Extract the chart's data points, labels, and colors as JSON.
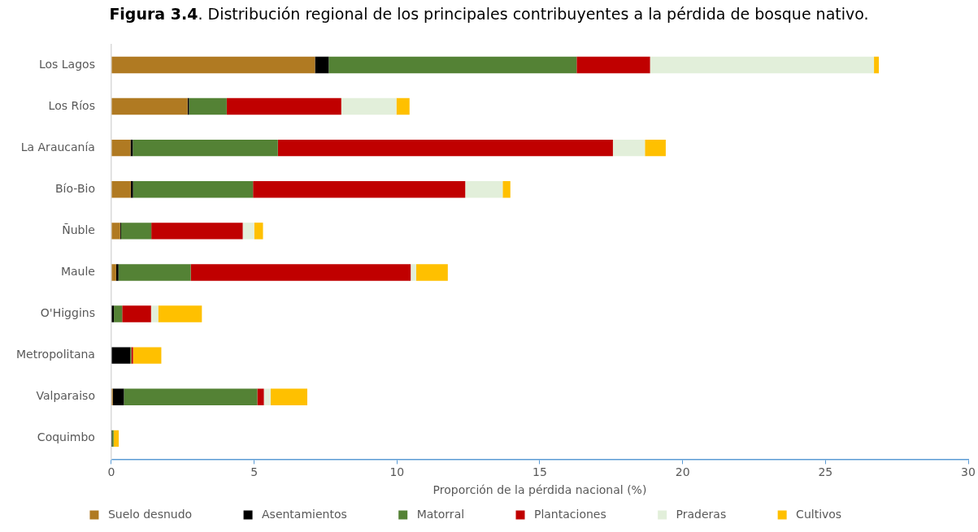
{
  "chart_data": {
    "type": "bar",
    "orientation": "horizontal",
    "stacked": true,
    "title": "Figura 3.4. Distribución regional de los principales contribuyentes a la pérdida de bosque nativo.",
    "xlabel": "Proporción de la pérdida nacional (%)",
    "categories": [
      "Los Lagos",
      "Los Ríos",
      "La Araucanía",
      "Bío-Bio",
      "Ñuble",
      "Maule",
      "O'Higgins",
      "Metropolitana",
      "Valparaiso",
      "Coquimbo"
    ],
    "series": [
      {
        "name": "Suelo desnudo",
        "color": "#b07a22",
        "values": [
          7.13,
          2.67,
          0.67,
          0.68,
          0.31,
          0.17,
          0,
          0,
          0.05,
          0
        ]
      },
      {
        "name": "Asentamientos",
        "color": "#000000",
        "values": [
          0.48,
          0.05,
          0.08,
          0.08,
          0.03,
          0.08,
          0.09,
          0.66,
          0.39,
          0.03
        ]
      },
      {
        "name": "Matorral",
        "color": "#548235",
        "values": [
          8.68,
          1.32,
          5.08,
          4.2,
          1.06,
          2.53,
          0.29,
          0.04,
          4.67,
          0.05
        ]
      },
      {
        "name": "Plantaciones",
        "color": "#c00000",
        "values": [
          2.57,
          4.01,
          11.73,
          7.43,
          3.2,
          7.7,
          1.01,
          0.06,
          0.23,
          0
        ]
      },
      {
        "name": "Praderas",
        "color": "#e2efda",
        "values": [
          7.84,
          1.93,
          1.12,
          1.31,
          0.4,
          0.19,
          0.25,
          null,
          0.24,
          0
        ]
      },
      {
        "name": "Cultivos",
        "color": "#ffc000",
        "values": [
          0.17,
          0.46,
          0.73,
          0.27,
          0.31,
          1.11,
          1.53,
          0.99,
          1.28,
          0.18
        ]
      }
    ],
    "xlim": [
      0,
      30
    ],
    "xticks": [
      0,
      5,
      10,
      15,
      20,
      25,
      30
    ],
    "legend": "bottom"
  }
}
